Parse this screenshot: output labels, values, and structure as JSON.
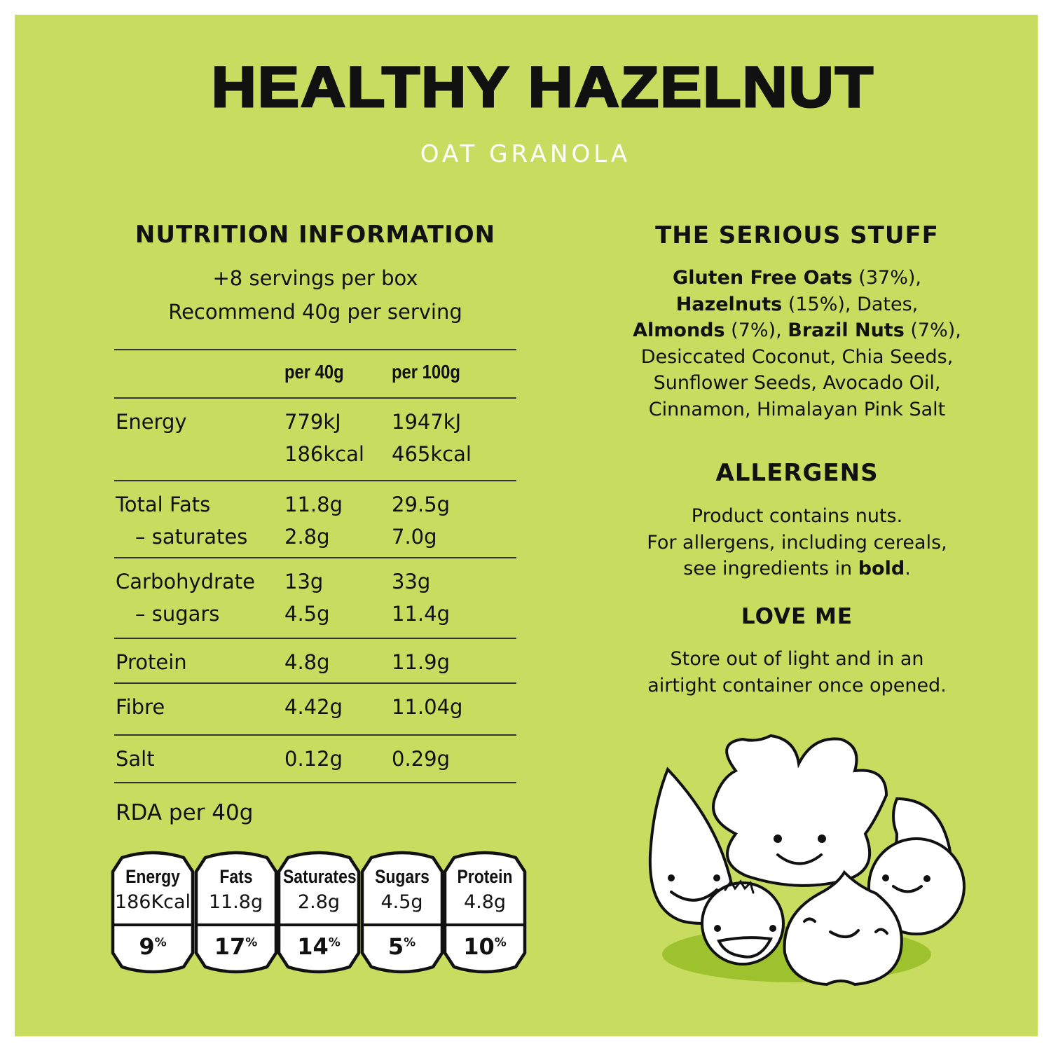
{
  "colors": {
    "background": "#c8dd5f",
    "text": "#111111",
    "subtitle": "#ffffff",
    "shadow": "#9dc22e"
  },
  "header": {
    "title": "HEALTHY HAZELNUT",
    "subtitle": "OAT GRANOLA"
  },
  "nutrition": {
    "heading": "NUTRITION INFORMATION",
    "servings": "+8 servings per box",
    "recommend": "Recommend 40g per serving",
    "columns": [
      "",
      "per 40g",
      "per 100g"
    ],
    "rows": [
      {
        "lines": [
          [
            "Energy",
            "779kJ",
            "1947kJ"
          ],
          [
            "",
            "186kcal",
            "465kcal"
          ]
        ]
      },
      {
        "lines": [
          [
            "Total Fats",
            "11.8g",
            "29.5g"
          ],
          [
            "– saturates",
            "2.8g",
            "7.0g"
          ]
        ]
      },
      {
        "lines": [
          [
            "Carbohydrate",
            "13g",
            "33g"
          ],
          [
            "– sugars",
            "4.5g",
            "11.4g"
          ]
        ]
      },
      {
        "lines": [
          [
            "Protein",
            "4.8g",
            "11.9g"
          ]
        ]
      },
      {
        "lines": [
          [
            "Fibre",
            "4.42g",
            "11.04g"
          ]
        ]
      },
      {
        "lines": [
          [
            "Salt",
            "0.12g",
            "0.29g"
          ]
        ]
      }
    ],
    "rda_label": "RDA per 40g",
    "rda": [
      {
        "name": "Energy",
        "value": "186Kcal",
        "percent": "9",
        "unit": "%"
      },
      {
        "name": "Fats",
        "value": "11.8g",
        "percent": "17",
        "unit": "%"
      },
      {
        "name": "Saturates",
        "value": "2.8g",
        "percent": "14",
        "unit": "%"
      },
      {
        "name": "Sugars",
        "value": "4.5g",
        "percent": "5",
        "unit": "%"
      },
      {
        "name": "Protein",
        "value": "4.8g",
        "percent": "10",
        "unit": "%"
      }
    ]
  },
  "serious": {
    "heading": "THE SERIOUS STUFF",
    "ingredients": [
      {
        "bold": "Gluten Free Oats",
        "rest": " (37%),"
      },
      {
        "bold": "Hazelnuts",
        "rest": " (15%), Dates,"
      },
      {
        "bold": "Almonds",
        "rest": " (7%), "
      },
      {
        "bold": "Brazil Nuts",
        "rest": " (7%),"
      },
      {
        "bold": "",
        "rest": "Desiccated Coconut, Chia Seeds,"
      },
      {
        "bold": "",
        "rest": "Sunflower Seeds, Avocado Oil,"
      },
      {
        "bold": "",
        "rest": "Cinnamon, Himalayan Pink Salt"
      }
    ]
  },
  "allergens": {
    "heading": "ALLERGENS",
    "line1": "Product contains nuts.",
    "line2": "For allergens, including cereals,",
    "line3": "see ingredients in ",
    "bold": "bold",
    "end": "."
  },
  "love": {
    "heading": "LOVE ME",
    "line1": "Store out of light and in an",
    "line2": "airtight container once opened."
  }
}
